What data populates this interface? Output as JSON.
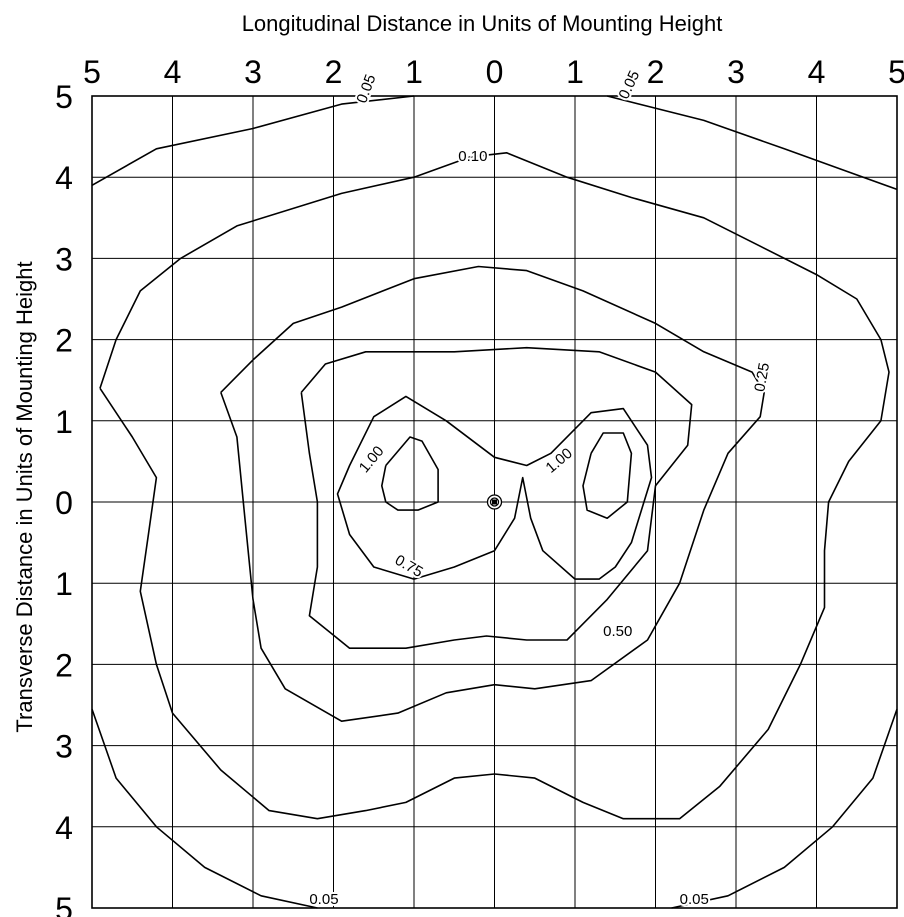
{
  "chart_data": {
    "type": "contour",
    "title": "",
    "xlabel": "Longitudinal Distance in Units of Mounting Height",
    "ylabel": "Transverse Distance in Units of Mounting Height",
    "x_range": [
      -5,
      5
    ],
    "y_range": [
      -5,
      5
    ],
    "grid": true,
    "x_tick_labels": [
      "5",
      "4",
      "3",
      "2",
      "1",
      "0",
      "1",
      "2",
      "3",
      "4",
      "5"
    ],
    "y_tick_labels": [
      "5",
      "4",
      "3",
      "2",
      "1",
      "0",
      "1",
      "2",
      "3",
      "4",
      "5"
    ],
    "luminaire": {
      "x": 0,
      "y": 0
    },
    "contours": [
      {
        "level": "0.05",
        "segments": [
          [
            [
              -5.0,
              3.9
            ],
            [
              -4.2,
              4.35
            ],
            [
              -3.0,
              4.6
            ],
            [
              -1.9,
              4.9
            ],
            [
              -1.0,
              5.0
            ]
          ],
          [
            [
              1.4,
              5.0
            ],
            [
              2.6,
              4.7
            ],
            [
              3.6,
              4.35
            ],
            [
              4.3,
              4.1
            ],
            [
              5.0,
              3.85
            ]
          ],
          [
            [
              -5.0,
              -2.55
            ],
            [
              -4.7,
              -3.4
            ],
            [
              -4.2,
              -4.0
            ],
            [
              -3.6,
              -4.5
            ],
            [
              -2.9,
              -4.85
            ],
            [
              -2.2,
              -5.0
            ]
          ],
          [
            [
              2.2,
              -5.0
            ],
            [
              2.9,
              -4.85
            ],
            [
              3.6,
              -4.5
            ],
            [
              4.2,
              -4.0
            ],
            [
              4.7,
              -3.4
            ],
            [
              5.0,
              -2.55
            ]
          ]
        ],
        "labels": [
          {
            "text": "0.05",
            "x": -1.6,
            "y": 4.9,
            "angle": -70
          },
          {
            "text": "0.05",
            "x": 1.65,
            "y": 4.95,
            "angle": -65
          },
          {
            "text": "0.05",
            "x": -2.3,
            "y": -4.95,
            "angle": 0
          },
          {
            "text": "0.05",
            "x": 2.3,
            "y": -4.95,
            "angle": 0
          }
        ]
      },
      {
        "level": "0.10",
        "segments": [
          [
            [
              -4.9,
              1.4
            ],
            [
              -4.7,
              2.0
            ],
            [
              -4.4,
              2.6
            ],
            [
              -3.9,
              3.0
            ],
            [
              -3.2,
              3.4
            ],
            [
              -1.9,
              3.8
            ],
            [
              -1.0,
              4.0
            ],
            [
              -0.3,
              4.25
            ],
            [
              0.15,
              4.3
            ],
            [
              0.9,
              4.0
            ],
            [
              1.7,
              3.75
            ],
            [
              2.6,
              3.5
            ],
            [
              3.3,
              3.15
            ],
            [
              4.0,
              2.8
            ],
            [
              4.5,
              2.5
            ],
            [
              4.8,
              2.0
            ],
            [
              4.9,
              1.6
            ],
            [
              4.8,
              1.0
            ],
            [
              4.4,
              0.5
            ],
            [
              4.15,
              0.0
            ],
            [
              4.1,
              -0.6
            ],
            [
              4.1,
              -1.3
            ],
            [
              3.8,
              -2.0
            ],
            [
              3.4,
              -2.8
            ],
            [
              2.8,
              -3.5
            ],
            [
              2.3,
              -3.9
            ],
            [
              1.6,
              -3.9
            ],
            [
              1.1,
              -3.7
            ],
            [
              0.5,
              -3.4
            ],
            [
              0.0,
              -3.35
            ],
            [
              -0.5,
              -3.4
            ],
            [
              -1.1,
              -3.7
            ],
            [
              -1.6,
              -3.8
            ],
            [
              -2.2,
              -3.9
            ],
            [
              -2.8,
              -3.8
            ],
            [
              -3.4,
              -3.3
            ],
            [
              -4.0,
              -2.6
            ],
            [
              -4.2,
              -2.0
            ],
            [
              -4.4,
              -1.1
            ],
            [
              -4.3,
              -0.4
            ],
            [
              -4.2,
              0.3
            ],
            [
              -4.5,
              0.8
            ],
            [
              -4.9,
              1.4
            ]
          ]
        ],
        "labels": [
          {
            "text": "0.10",
            "x": -0.45,
            "y": 4.2,
            "angle": 0
          }
        ]
      },
      {
        "level": "0.25",
        "segments": [
          [
            [
              -3.4,
              1.35
            ],
            [
              -3.0,
              1.75
            ],
            [
              -2.5,
              2.2
            ],
            [
              -1.9,
              2.4
            ],
            [
              -1.0,
              2.75
            ],
            [
              -0.2,
              2.9
            ],
            [
              0.4,
              2.85
            ],
            [
              1.1,
              2.6
            ],
            [
              2.0,
              2.2
            ],
            [
              2.6,
              1.85
            ],
            [
              3.2,
              1.6
            ],
            [
              3.35,
              1.35
            ],
            [
              3.3,
              1.05
            ],
            [
              2.9,
              0.6
            ],
            [
              2.6,
              -0.1
            ],
            [
              2.3,
              -1.0
            ],
            [
              1.9,
              -1.7
            ],
            [
              1.2,
              -2.2
            ],
            [
              0.5,
              -2.3
            ],
            [
              0.0,
              -2.25
            ],
            [
              -0.6,
              -2.35
            ],
            [
              -1.2,
              -2.6
            ],
            [
              -1.9,
              -2.7
            ],
            [
              -2.6,
              -2.3
            ],
            [
              -2.9,
              -1.8
            ],
            [
              -3.0,
              -1.2
            ],
            [
              -3.1,
              -0.2
            ],
            [
              -3.2,
              0.8
            ],
            [
              -3.4,
              1.35
            ]
          ]
        ],
        "labels": [
          {
            "text": "0.25",
            "x": 3.35,
            "y": 1.35,
            "angle": -80
          }
        ]
      },
      {
        "level": "0.50",
        "segments": [
          [
            [
              -2.4,
              1.35
            ],
            [
              -2.1,
              1.7
            ],
            [
              -1.6,
              1.85
            ],
            [
              -0.5,
              1.85
            ],
            [
              0.4,
              1.9
            ],
            [
              1.3,
              1.85
            ],
            [
              2.0,
              1.6
            ],
            [
              2.45,
              1.2
            ],
            [
              2.4,
              0.7
            ],
            [
              2.0,
              0.2
            ],
            [
              1.9,
              -0.6
            ],
            [
              1.4,
              -1.2
            ],
            [
              0.9,
              -1.7
            ],
            [
              0.4,
              -1.7
            ],
            [
              -0.1,
              -1.65
            ],
            [
              -0.5,
              -1.7
            ],
            [
              -1.1,
              -1.8
            ],
            [
              -1.8,
              -1.8
            ],
            [
              -2.3,
              -1.4
            ],
            [
              -2.2,
              -0.8
            ],
            [
              -2.2,
              0.0
            ],
            [
              -2.3,
              0.6
            ],
            [
              -2.4,
              1.35
            ]
          ]
        ],
        "labels": [
          {
            "text": "0.50",
            "x": 1.35,
            "y": -1.65,
            "angle": 0
          }
        ]
      },
      {
        "level": "0.75",
        "segments": [
          [
            [
              -1.8,
              0.45
            ],
            [
              -1.5,
              1.05
            ],
            [
              -1.1,
              1.3
            ],
            [
              -0.6,
              1.0
            ],
            [
              0.0,
              0.55
            ],
            [
              0.4,
              0.45
            ],
            [
              0.7,
              0.6
            ],
            [
              1.2,
              1.1
            ],
            [
              1.6,
              1.15
            ],
            [
              1.9,
              0.7
            ],
            [
              1.95,
              0.3
            ],
            [
              1.7,
              -0.5
            ],
            [
              1.5,
              -0.8
            ],
            [
              1.3,
              -0.95
            ],
            [
              1.0,
              -0.95
            ],
            [
              0.6,
              -0.6
            ],
            [
              0.45,
              -0.2
            ],
            [
              0.35,
              0.3
            ],
            [
              0.25,
              -0.2
            ],
            [
              0.0,
              -0.6
            ],
            [
              -0.5,
              -0.8
            ],
            [
              -1.0,
              -0.95
            ],
            [
              -1.5,
              -0.8
            ],
            [
              -1.8,
              -0.4
            ],
            [
              -1.95,
              0.1
            ],
            [
              -1.8,
              0.45
            ]
          ]
        ],
        "labels": [
          {
            "text": "0.75",
            "x": -1.25,
            "y": -0.75,
            "angle": 30
          }
        ]
      },
      {
        "level": "1.00",
        "segments": [
          [
            [
              -1.35,
              0.45
            ],
            [
              -1.05,
              0.8
            ],
            [
              -0.9,
              0.75
            ],
            [
              -0.7,
              0.4
            ],
            [
              -0.7,
              0.0
            ],
            [
              -0.95,
              -0.1
            ],
            [
              -1.2,
              -0.1
            ],
            [
              -1.35,
              0.0
            ],
            [
              -1.4,
              0.2
            ],
            [
              -1.35,
              0.45
            ]
          ],
          [
            [
              1.2,
              0.6
            ],
            [
              1.35,
              0.85
            ],
            [
              1.6,
              0.85
            ],
            [
              1.7,
              0.6
            ],
            [
              1.65,
              0.0
            ],
            [
              1.4,
              -0.2
            ],
            [
              1.15,
              -0.1
            ],
            [
              1.1,
              0.2
            ],
            [
              1.2,
              0.6
            ]
          ]
        ],
        "labels": [
          {
            "text": "1.00",
            "x": -1.6,
            "y": 0.35,
            "angle": -50
          },
          {
            "text": "1.00",
            "x": 0.7,
            "y": 0.35,
            "angle": -40
          }
        ]
      }
    ]
  }
}
